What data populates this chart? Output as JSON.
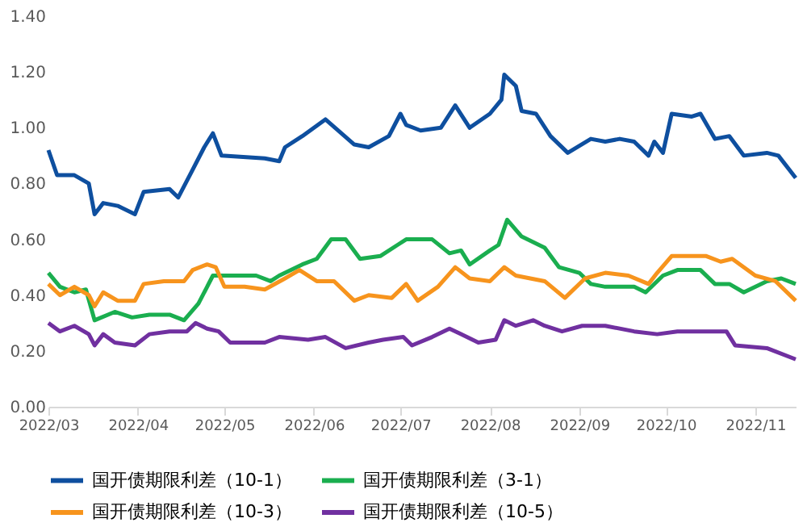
{
  "chart_data": {
    "type": "line",
    "xlim": [
      "2022-03-01",
      "2022-11-15"
    ],
    "xticks": [
      {
        "value": "2022-03-01",
        "label": "2022/03"
      },
      {
        "value": "2022-04-01",
        "label": "2022/04"
      },
      {
        "value": "2022-05-01",
        "label": "2022/05"
      },
      {
        "value": "2022-06-01",
        "label": "2022/06"
      },
      {
        "value": "2022-07-01",
        "label": "2022/07"
      },
      {
        "value": "2022-08-01",
        "label": "2022/08"
      },
      {
        "value": "2022-09-01",
        "label": "2022/09"
      },
      {
        "value": "2022-10-01",
        "label": "2022/10"
      },
      {
        "value": "2022-11-01",
        "label": "2022/11"
      }
    ],
    "ylim": [
      0,
      1.4
    ],
    "yticks": [
      {
        "value": 0,
        "label": "0.00"
      },
      {
        "value": 0.2,
        "label": "0.20"
      },
      {
        "value": 0.4,
        "label": "0.40"
      },
      {
        "value": 0.6,
        "label": "0.60"
      },
      {
        "value": 0.8,
        "label": "0.80"
      },
      {
        "value": 1.0,
        "label": "1.00"
      },
      {
        "value": 1.2,
        "label": "1.20"
      },
      {
        "value": 1.4,
        "label": "1.40"
      }
    ],
    "grid": false,
    "legend": "bottom",
    "marker": "none",
    "line_style": "solid",
    "series": [
      {
        "name": "国开债期限利差（10-1）",
        "color": "#0e4f9f",
        "x": [
          "2022-03-01",
          "2022-03-04",
          "2022-03-10",
          "2022-03-15",
          "2022-03-17",
          "2022-03-20",
          "2022-03-25",
          "2022-03-31",
          "2022-04-03",
          "2022-04-12",
          "2022-04-15",
          "2022-04-19",
          "2022-04-24",
          "2022-04-27",
          "2022-04-30",
          "2022-05-15",
          "2022-05-20",
          "2022-05-22",
          "2022-05-28",
          "2022-06-05",
          "2022-06-15",
          "2022-06-20",
          "2022-06-27",
          "2022-07-01",
          "2022-07-03",
          "2022-07-08",
          "2022-07-15",
          "2022-07-20",
          "2022-07-25",
          "2022-08-01",
          "2022-08-05",
          "2022-08-06",
          "2022-08-10",
          "2022-08-12",
          "2022-08-17",
          "2022-08-22",
          "2022-08-28",
          "2022-09-05",
          "2022-09-10",
          "2022-09-15",
          "2022-09-20",
          "2022-09-25",
          "2022-09-27",
          "2022-09-30",
          "2022-10-03",
          "2022-10-10",
          "2022-10-13",
          "2022-10-18",
          "2022-10-23",
          "2022-10-28",
          "2022-11-05",
          "2022-11-09",
          "2022-11-15"
        ],
        "values": [
          0.92,
          0.83,
          0.83,
          0.8,
          0.69,
          0.73,
          0.72,
          0.69,
          0.77,
          0.78,
          0.75,
          0.83,
          0.93,
          0.98,
          0.9,
          0.89,
          0.88,
          0.93,
          0.97,
          1.03,
          0.94,
          0.93,
          0.97,
          1.05,
          1.01,
          0.99,
          1.0,
          1.08,
          1.0,
          1.05,
          1.1,
          1.19,
          1.15,
          1.06,
          1.05,
          0.97,
          0.91,
          0.96,
          0.95,
          0.96,
          0.95,
          0.9,
          0.95,
          0.91,
          1.05,
          1.04,
          1.05,
          0.96,
          0.97,
          0.9,
          0.91,
          0.9,
          0.82
        ]
      },
      {
        "name": "国开债期限利差（3-1）",
        "color": "#1aae4f",
        "x": [
          "2022-03-01",
          "2022-03-05",
          "2022-03-10",
          "2022-03-14",
          "2022-03-17",
          "2022-03-24",
          "2022-03-30",
          "2022-04-05",
          "2022-04-12",
          "2022-04-17",
          "2022-04-22",
          "2022-04-27",
          "2022-05-05",
          "2022-05-12",
          "2022-05-17",
          "2022-05-20",
          "2022-05-28",
          "2022-06-02",
          "2022-06-07",
          "2022-06-12",
          "2022-06-17",
          "2022-06-24",
          "2022-06-30",
          "2022-07-03",
          "2022-07-12",
          "2022-07-18",
          "2022-07-22",
          "2022-07-25",
          "2022-08-01",
          "2022-08-04",
          "2022-08-07",
          "2022-08-12",
          "2022-08-20",
          "2022-08-25",
          "2022-09-01",
          "2022-09-05",
          "2022-09-10",
          "2022-09-20",
          "2022-09-24",
          "2022-09-30",
          "2022-10-05",
          "2022-10-13",
          "2022-10-18",
          "2022-10-23",
          "2022-10-28",
          "2022-11-05",
          "2022-11-10",
          "2022-11-15"
        ],
        "values": [
          0.48,
          0.43,
          0.41,
          0.42,
          0.31,
          0.34,
          0.32,
          0.33,
          0.33,
          0.31,
          0.37,
          0.47,
          0.47,
          0.47,
          0.45,
          0.47,
          0.51,
          0.53,
          0.6,
          0.6,
          0.53,
          0.54,
          0.58,
          0.6,
          0.6,
          0.55,
          0.56,
          0.51,
          0.56,
          0.58,
          0.67,
          0.61,
          0.57,
          0.5,
          0.48,
          0.44,
          0.43,
          0.43,
          0.41,
          0.47,
          0.49,
          0.49,
          0.44,
          0.44,
          0.41,
          0.45,
          0.46,
          0.44
        ]
      },
      {
        "name": "国开债期限利差（10-3）",
        "color": "#f7941d",
        "x": [
          "2022-03-01",
          "2022-03-05",
          "2022-03-10",
          "2022-03-15",
          "2022-03-17",
          "2022-03-20",
          "2022-03-25",
          "2022-03-31",
          "2022-04-03",
          "2022-04-10",
          "2022-04-17",
          "2022-04-20",
          "2022-04-25",
          "2022-04-28",
          "2022-05-01",
          "2022-05-08",
          "2022-05-15",
          "2022-05-22",
          "2022-05-27",
          "2022-06-02",
          "2022-06-08",
          "2022-06-15",
          "2022-06-20",
          "2022-06-28",
          "2022-07-03",
          "2022-07-07",
          "2022-07-14",
          "2022-07-20",
          "2022-07-25",
          "2022-08-01",
          "2022-08-06",
          "2022-08-10",
          "2022-08-15",
          "2022-08-20",
          "2022-08-27",
          "2022-09-03",
          "2022-09-10",
          "2022-09-18",
          "2022-09-25",
          "2022-09-28",
          "2022-10-03",
          "2022-10-10",
          "2022-10-15",
          "2022-10-20",
          "2022-10-24",
          "2022-11-01",
          "2022-11-08",
          "2022-11-15"
        ],
        "values": [
          0.44,
          0.4,
          0.43,
          0.4,
          0.36,
          0.41,
          0.38,
          0.38,
          0.44,
          0.45,
          0.45,
          0.49,
          0.51,
          0.5,
          0.43,
          0.43,
          0.42,
          0.46,
          0.49,
          0.45,
          0.45,
          0.38,
          0.4,
          0.39,
          0.44,
          0.38,
          0.43,
          0.5,
          0.46,
          0.45,
          0.5,
          0.47,
          0.46,
          0.45,
          0.39,
          0.46,
          0.48,
          0.47,
          0.44,
          0.48,
          0.54,
          0.54,
          0.54,
          0.52,
          0.53,
          0.47,
          0.45,
          0.38
        ]
      },
      {
        "name": "国开债期限利差（10-5）",
        "color": "#7030a0",
        "x": [
          "2022-03-01",
          "2022-03-05",
          "2022-03-10",
          "2022-03-15",
          "2022-03-17",
          "2022-03-20",
          "2022-03-24",
          "2022-03-31",
          "2022-04-05",
          "2022-04-12",
          "2022-04-18",
          "2022-04-21",
          "2022-04-25",
          "2022-04-29",
          "2022-05-03",
          "2022-05-15",
          "2022-05-20",
          "2022-05-30",
          "2022-06-05",
          "2022-06-12",
          "2022-06-20",
          "2022-06-25",
          "2022-07-02",
          "2022-07-05",
          "2022-07-12",
          "2022-07-18",
          "2022-07-22",
          "2022-07-28",
          "2022-08-03",
          "2022-08-06",
          "2022-08-10",
          "2022-08-16",
          "2022-08-20",
          "2022-08-26",
          "2022-09-02",
          "2022-09-10",
          "2022-09-20",
          "2022-09-28",
          "2022-10-05",
          "2022-10-15",
          "2022-10-22",
          "2022-10-25",
          "2022-11-05",
          "2022-11-15"
        ],
        "values": [
          0.3,
          0.27,
          0.29,
          0.26,
          0.22,
          0.26,
          0.23,
          0.22,
          0.26,
          0.27,
          0.27,
          0.3,
          0.28,
          0.27,
          0.23,
          0.23,
          0.25,
          0.24,
          0.25,
          0.21,
          0.23,
          0.24,
          0.25,
          0.22,
          0.25,
          0.28,
          0.26,
          0.23,
          0.24,
          0.31,
          0.29,
          0.31,
          0.29,
          0.27,
          0.29,
          0.29,
          0.27,
          0.26,
          0.27,
          0.27,
          0.27,
          0.22,
          0.21,
          0.17
        ]
      }
    ]
  }
}
